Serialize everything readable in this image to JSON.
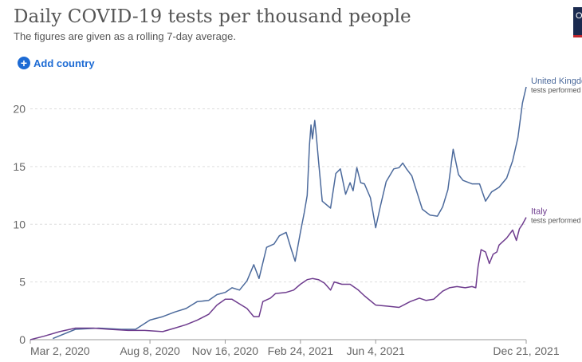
{
  "header": {
    "title": "Daily COVID-19 tests per thousand people",
    "subtitle": "The figures are given as a rolling 7-day average.",
    "add_country": "Add country",
    "logo_letter": "O"
  },
  "chart_data": {
    "type": "line",
    "title": "Daily COVID-19 tests per thousand people",
    "subtitle": "The figures are given as a rolling 7-day average.",
    "x_ticks": [
      {
        "date": "2020-03-02",
        "label": "Mar 2, 2020"
      },
      {
        "date": "2020-08-08",
        "label": "Aug 8, 2020"
      },
      {
        "date": "2020-11-16",
        "label": "Nov 16, 2020"
      },
      {
        "date": "2021-02-24",
        "label": "Feb 24, 2021"
      },
      {
        "date": "2021-06-04",
        "label": "Jun 4, 2021"
      },
      {
        "date": "2021-12-21",
        "label": "Dec 21, 2021"
      }
    ],
    "y_ticks": [
      0,
      5,
      10,
      15,
      20
    ],
    "xlim": [
      "2020-03-02",
      "2021-12-21"
    ],
    "ylim": [
      0,
      21.9
    ],
    "grid": true,
    "series": [
      {
        "name": "United Kingdom",
        "end_label": "United Kingdom",
        "end_sublabel": "tests performed",
        "color": "#4c6a9c",
        "points": [
          [
            "2020-04-01",
            0.1
          ],
          [
            "2020-05-01",
            0.9
          ],
          [
            "2020-06-01",
            1.0
          ],
          [
            "2020-07-01",
            0.9
          ],
          [
            "2020-07-20",
            0.9
          ],
          [
            "2020-08-08",
            1.7
          ],
          [
            "2020-08-25",
            2.0
          ],
          [
            "2020-09-10",
            2.4
          ],
          [
            "2020-09-25",
            2.7
          ],
          [
            "2020-10-10",
            3.3
          ],
          [
            "2020-10-25",
            3.4
          ],
          [
            "2020-11-05",
            3.9
          ],
          [
            "2020-11-16",
            4.1
          ],
          [
            "2020-11-25",
            4.5
          ],
          [
            "2020-12-05",
            4.3
          ],
          [
            "2020-12-15",
            5.1
          ],
          [
            "2020-12-24",
            6.5
          ],
          [
            "2020-12-31",
            5.3
          ],
          [
            "2021-01-10",
            8.0
          ],
          [
            "2021-01-20",
            8.3
          ],
          [
            "2021-01-27",
            9.0
          ],
          [
            "2021-02-05",
            9.3
          ],
          [
            "2021-02-12",
            7.8
          ],
          [
            "2021-02-17",
            6.8
          ],
          [
            "2021-02-24",
            9.3
          ],
          [
            "2021-03-01",
            11.0
          ],
          [
            "2021-03-05",
            12.5
          ],
          [
            "2021-03-08",
            16.9
          ],
          [
            "2021-03-10",
            18.6
          ],
          [
            "2021-03-12",
            17.4
          ],
          [
            "2021-03-15",
            19.0
          ],
          [
            "2021-03-17",
            17.7
          ],
          [
            "2021-03-20",
            15.5
          ],
          [
            "2021-03-25",
            12.0
          ],
          [
            "2021-04-05",
            11.4
          ],
          [
            "2021-04-12",
            14.4
          ],
          [
            "2021-04-18",
            14.8
          ],
          [
            "2021-04-25",
            12.6
          ],
          [
            "2021-05-01",
            13.6
          ],
          [
            "2021-05-05",
            12.9
          ],
          [
            "2021-05-10",
            14.9
          ],
          [
            "2021-05-15",
            13.6
          ],
          [
            "2021-05-20",
            13.5
          ],
          [
            "2021-05-28",
            12.3
          ],
          [
            "2021-06-04",
            9.7
          ],
          [
            "2021-06-10",
            11.5
          ],
          [
            "2021-06-18",
            13.7
          ],
          [
            "2021-06-28",
            14.8
          ],
          [
            "2021-07-05",
            14.9
          ],
          [
            "2021-07-10",
            15.3
          ],
          [
            "2021-07-15",
            14.8
          ],
          [
            "2021-07-22",
            14.2
          ],
          [
            "2021-08-05",
            11.3
          ],
          [
            "2021-08-15",
            10.8
          ],
          [
            "2021-08-25",
            10.7
          ],
          [
            "2021-09-01",
            11.5
          ],
          [
            "2021-09-08",
            13.0
          ],
          [
            "2021-09-15",
            16.5
          ],
          [
            "2021-09-22",
            14.3
          ],
          [
            "2021-09-28",
            13.8
          ],
          [
            "2021-10-10",
            13.5
          ],
          [
            "2021-10-20",
            13.5
          ],
          [
            "2021-10-28",
            12.0
          ],
          [
            "2021-11-05",
            12.8
          ],
          [
            "2021-11-15",
            13.2
          ],
          [
            "2021-11-25",
            14.0
          ],
          [
            "2021-12-03",
            15.5
          ],
          [
            "2021-12-10",
            17.5
          ],
          [
            "2021-12-16",
            20.5
          ],
          [
            "2021-12-21",
            21.9
          ]
        ]
      },
      {
        "name": "Italy",
        "end_label": "Italy",
        "end_sublabel": "tests performed",
        "color": "#6e3c8e",
        "points": [
          [
            "2020-03-02",
            0.0
          ],
          [
            "2020-03-20",
            0.3
          ],
          [
            "2020-04-10",
            0.7
          ],
          [
            "2020-05-01",
            1.0
          ],
          [
            "2020-05-25",
            1.0
          ],
          [
            "2020-06-15",
            0.9
          ],
          [
            "2020-07-10",
            0.8
          ],
          [
            "2020-08-01",
            0.8
          ],
          [
            "2020-08-25",
            0.7
          ],
          [
            "2020-09-10",
            1.0
          ],
          [
            "2020-09-25",
            1.3
          ],
          [
            "2020-10-10",
            1.7
          ],
          [
            "2020-10-25",
            2.2
          ],
          [
            "2020-11-05",
            3.0
          ],
          [
            "2020-11-16",
            3.5
          ],
          [
            "2020-11-25",
            3.5
          ],
          [
            "2020-12-05",
            3.1
          ],
          [
            "2020-12-15",
            2.7
          ],
          [
            "2020-12-24",
            2.0
          ],
          [
            "2020-12-31",
            2.0
          ],
          [
            "2021-01-05",
            3.3
          ],
          [
            "2021-01-15",
            3.6
          ],
          [
            "2021-01-22",
            4.0
          ],
          [
            "2021-02-05",
            4.1
          ],
          [
            "2021-02-15",
            4.3
          ],
          [
            "2021-02-24",
            4.8
          ],
          [
            "2021-03-05",
            5.2
          ],
          [
            "2021-03-12",
            5.3
          ],
          [
            "2021-03-20",
            5.2
          ],
          [
            "2021-03-28",
            4.9
          ],
          [
            "2021-04-05",
            4.3
          ],
          [
            "2021-04-10",
            5.0
          ],
          [
            "2021-04-20",
            4.8
          ],
          [
            "2021-05-01",
            4.8
          ],
          [
            "2021-05-12",
            4.3
          ],
          [
            "2021-05-20",
            3.8
          ],
          [
            "2021-06-04",
            3.0
          ],
          [
            "2021-06-20",
            2.9
          ],
          [
            "2021-07-05",
            2.8
          ],
          [
            "2021-07-20",
            3.3
          ],
          [
            "2021-08-01",
            3.6
          ],
          [
            "2021-08-10",
            3.4
          ],
          [
            "2021-08-20",
            3.5
          ],
          [
            "2021-09-01",
            4.2
          ],
          [
            "2021-09-10",
            4.5
          ],
          [
            "2021-09-20",
            4.6
          ],
          [
            "2021-10-01",
            4.5
          ],
          [
            "2021-10-10",
            4.6
          ],
          [
            "2021-10-15",
            4.5
          ],
          [
            "2021-10-18",
            6.3
          ],
          [
            "2021-10-22",
            7.8
          ],
          [
            "2021-10-28",
            7.6
          ],
          [
            "2021-11-02",
            6.6
          ],
          [
            "2021-11-07",
            7.4
          ],
          [
            "2021-11-12",
            7.6
          ],
          [
            "2021-11-15",
            8.2
          ],
          [
            "2021-11-25",
            8.8
          ],
          [
            "2021-12-03",
            9.5
          ],
          [
            "2021-12-08",
            8.6
          ],
          [
            "2021-12-12",
            9.6
          ],
          [
            "2021-12-16",
            10.0
          ],
          [
            "2021-12-21",
            10.6
          ]
        ]
      }
    ]
  }
}
